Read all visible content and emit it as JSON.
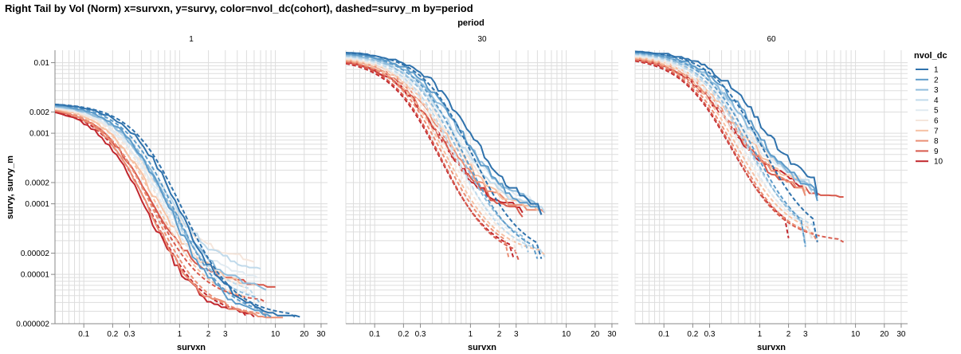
{
  "chart_data": {
    "type": "line",
    "title": "Right Tail by Vol (Norm) x=survxn, y=survy, color=nvol_dc(cohort), dashed=survy_m by=period",
    "facet_title": "period",
    "xlabel": "survxn",
    "ylabel": "survy, survy_m",
    "x_scale": "log",
    "y_scale": "log",
    "xlim": [
      0.05,
      35
    ],
    "ylim": [
      2e-06,
      0.015
    ],
    "grid": true,
    "x_ticks": [
      0.1,
      0.2,
      0.3,
      1,
      2,
      3,
      10,
      20,
      30
    ],
    "x_tick_labels": [
      "0.1",
      "0.2",
      "0.3",
      "1",
      "2",
      "3",
      "10",
      "20",
      "30"
    ],
    "y_ticks": [
      0.01,
      0.002,
      0.001,
      0.0002,
      0.0001,
      2e-05,
      1e-05,
      2e-06
    ],
    "y_tick_labels": [
      "0.01",
      "0.002",
      "0.001",
      "0.0002",
      "0.0001",
      "0.00002",
      "0.00001",
      "0.000002"
    ],
    "legend": {
      "title": "nvol_dc",
      "placement": "right",
      "labels": [
        "1",
        "2",
        "3",
        "4",
        "5",
        "6",
        "7",
        "8",
        "9",
        "10"
      ],
      "colors": [
        "#2f72ac",
        "#5d9bc9",
        "#8fbcdc",
        "#c0daeb",
        "#e1ebf2",
        "#f5e6dc",
        "#f6c1a3",
        "#ea8e74",
        "#d75a4d",
        "#c1272d"
      ]
    },
    "line_styles": {
      "survy": "solid",
      "survy_m": "dashed"
    },
    "facets": [
      {
        "label": "1",
        "y0": [
          0.0027,
          0.0027,
          0.0026,
          0.0026,
          0.0026,
          0.0025,
          0.0025,
          0.0025,
          0.0024,
          0.0024
        ],
        "scale": [
          1.0,
          0.8,
          0.71,
          0.64,
          0.59,
          0.56,
          0.53,
          0.5,
          0.48,
          0.46
        ],
        "x_end": [
          18,
          9,
          8,
          7,
          6.5,
          6,
          6,
          12,
          10,
          6
        ],
        "y_end": [
          2.5e-06,
          2.5e-06,
          6e-06,
          1.2e-05,
          9e-06,
          1.5e-05,
          7e-06,
          2.5e-06,
          7e-06,
          2.5e-06
        ],
        "m_scale": [
          1.08,
          0.88,
          0.78,
          0.7,
          0.64,
          0.6,
          0.57,
          0.54,
          0.52,
          0.5
        ],
        "m_x_end": [
          16,
          8,
          7,
          6,
          6,
          5,
          5,
          9,
          8,
          5
        ]
      },
      {
        "label": "30",
        "y0": [
          0.0145,
          0.0142,
          0.0138,
          0.0135,
          0.0132,
          0.0128,
          0.0125,
          0.0122,
          0.0118,
          0.0115
        ],
        "scale": [
          1.0,
          0.82,
          0.74,
          0.68,
          0.62,
          0.58,
          0.55,
          0.52,
          0.49,
          0.47
        ],
        "x_end": [
          5.5,
          5.5,
          5,
          6,
          4.5,
          4.5,
          5,
          6,
          3.5,
          3.5
        ],
        "y_end": [
          7e-05,
          7e-05,
          9e-05,
          7.5e-05,
          0.0001,
          9e-05,
          8e-05,
          7.5e-05,
          6.5e-05,
          7.5e-05
        ],
        "m_scale": [
          1.05,
          0.86,
          0.76,
          0.7,
          0.64,
          0.6,
          0.56,
          0.53,
          0.5,
          0.48
        ],
        "m_x_end": [
          5.5,
          5,
          4,
          6,
          3.5,
          3,
          6,
          2.5,
          3.2,
          2.8
        ]
      },
      {
        "label": "60",
        "y0": [
          0.015,
          0.0148,
          0.0145,
          0.0142,
          0.0138,
          0.0135,
          0.0132,
          0.0128,
          0.0125,
          0.0122
        ],
        "scale": [
          1.0,
          0.84,
          0.76,
          0.7,
          0.64,
          0.6,
          0.56,
          0.53,
          0.5,
          0.48
        ],
        "x_end": [
          4,
          4,
          4,
          3.5,
          3.5,
          3,
          3,
          3,
          7.5,
          3
        ],
        "y_end": [
          0.00013,
          0.00011,
          0.00012,
          0.00015,
          0.00014,
          0.00016,
          0.00015,
          0.00013,
          0.00013,
          0.00015
        ],
        "m_scale": [
          1.05,
          0.86,
          0.78,
          0.72,
          0.66,
          0.62,
          0.58,
          0.55,
          0.52,
          0.5
        ],
        "m_x_end": [
          4,
          3,
          3,
          4,
          3.5,
          3.5,
          3.5,
          4,
          7.5,
          2
        ]
      }
    ]
  }
}
